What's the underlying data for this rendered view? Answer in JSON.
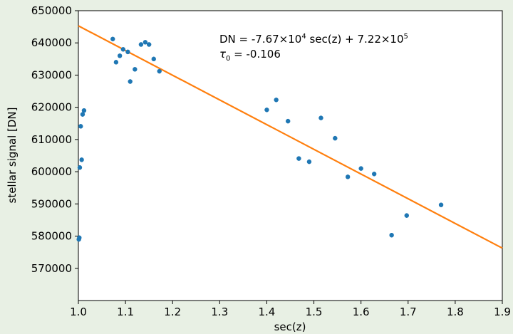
{
  "chart_data": {
    "type": "scatter",
    "xlabel": "sec(z)",
    "ylabel": "stellar signal [DN]",
    "xlim": [
      1.0,
      1.9
    ],
    "ylim": [
      560000,
      650000
    ],
    "x_ticks": [
      "1.0",
      "1.1",
      "1.2",
      "1.3",
      "1.4",
      "1.5",
      "1.6",
      "1.7",
      "1.8",
      "1.9"
    ],
    "y_ticks": [
      "570000",
      "580000",
      "590000",
      "600000",
      "610000",
      "620000",
      "630000",
      "640000",
      "650000"
    ],
    "grid": false,
    "colors": {
      "points": "#1f77b4",
      "fit": "#ff7f0e",
      "plot_bg": "#ffffff",
      "page_bg": "#e8f0e4"
    },
    "series": [
      {
        "values": [
          [
            1.001,
            579000
          ],
          [
            1.002,
            579500
          ],
          [
            1.003,
            601300
          ],
          [
            1.005,
            614100
          ],
          [
            1.007,
            603700
          ],
          [
            1.009,
            617800
          ],
          [
            1.012,
            619000
          ],
          [
            1.073,
            641200
          ],
          [
            1.08,
            634000
          ],
          [
            1.088,
            636000
          ],
          [
            1.095,
            638000
          ],
          [
            1.105,
            637200
          ],
          [
            1.11,
            628000
          ],
          [
            1.12,
            631800
          ],
          [
            1.133,
            639500
          ],
          [
            1.142,
            640200
          ],
          [
            1.15,
            639500
          ],
          [
            1.16,
            635000
          ],
          [
            1.172,
            631200
          ],
          [
            1.4,
            619200
          ],
          [
            1.42,
            622300
          ],
          [
            1.445,
            615700
          ],
          [
            1.468,
            604100
          ],
          [
            1.49,
            603100
          ],
          [
            1.515,
            616700
          ],
          [
            1.545,
            610400
          ],
          [
            1.572,
            598400
          ],
          [
            1.6,
            601000
          ],
          [
            1.628,
            599300
          ],
          [
            1.665,
            580300
          ],
          [
            1.697,
            586400
          ],
          [
            1.77,
            589700
          ]
        ],
        "error_y": 700
      }
    ],
    "fit_line": {
      "slope": -76700,
      "intercept": 722000
    },
    "annotation": {
      "line1": {
        "prefix": "DN = -7.67×10",
        "exp1": "4",
        "middle": " sec(z) + 7.22×10",
        "exp2": "5"
      },
      "line2": {
        "tau": "τ",
        "sub": "0",
        "rest": " = -0.106"
      }
    }
  }
}
